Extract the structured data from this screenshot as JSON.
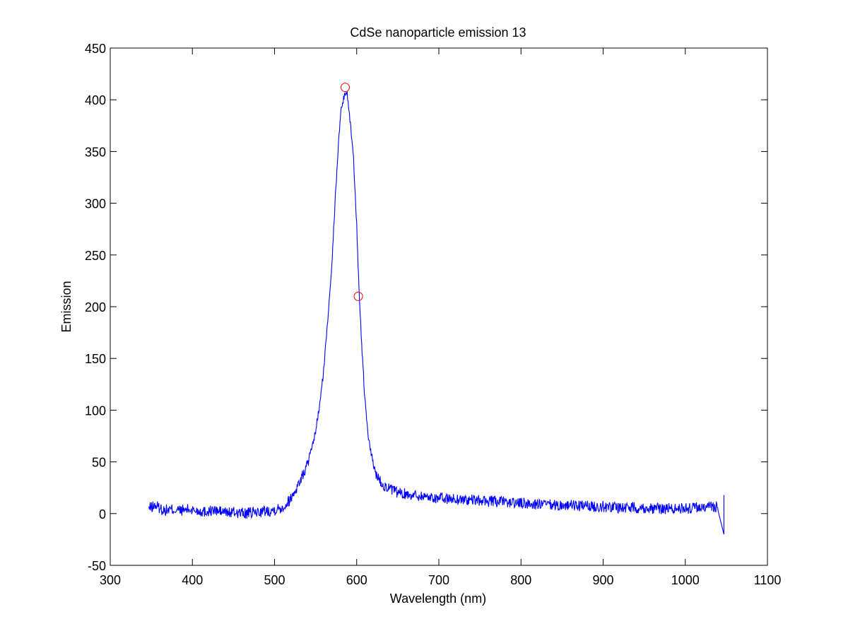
{
  "chart_data": {
    "type": "line",
    "title": "CdSe nanoparticle emission 13",
    "xlabel": "Wavelength (nm)",
    "ylabel": "Emission",
    "xlim": [
      300,
      1100
    ],
    "ylim": [
      -50,
      450
    ],
    "xticks": [
      "300",
      "400",
      "500",
      "600",
      "700",
      "800",
      "900",
      "1000",
      "1100"
    ],
    "yticks": [
      "-50",
      "0",
      "50",
      "100",
      "150",
      "200",
      "250",
      "300",
      "350",
      "400",
      "450"
    ],
    "grid": false,
    "legend": "none",
    "series": [
      {
        "color": "#0000ff",
        "x": [
          347,
          355,
          365,
          375,
          385,
          395,
          405,
          415,
          425,
          435,
          445,
          455,
          465,
          475,
          485,
          495,
          505,
          510,
          515,
          520,
          525,
          530,
          535,
          540,
          545,
          550,
          555,
          560,
          565,
          570,
          575,
          580,
          585,
          588,
          592,
          596,
          600,
          603,
          606,
          610,
          614,
          618,
          622,
          626,
          630,
          635,
          640,
          645,
          650,
          660,
          670,
          680,
          690,
          700,
          720,
          740,
          760,
          780,
          800,
          820,
          840,
          860,
          880,
          900,
          920,
          940,
          960,
          980,
          1000,
          1020,
          1040,
          1047
        ],
        "y": [
          5,
          8,
          3,
          4,
          3,
          4,
          3,
          2,
          3,
          2,
          1,
          1,
          0,
          1,
          2,
          3,
          5,
          6,
          10,
          15,
          22,
          30,
          38,
          48,
          60,
          80,
          105,
          140,
          190,
          245,
          320,
          385,
          405,
          408,
          380,
          345,
          280,
          210,
          165,
          110,
          75,
          55,
          42,
          35,
          30,
          26,
          24,
          22,
          20,
          19,
          18,
          17,
          16,
          15,
          14,
          13,
          12,
          11,
          10,
          9,
          8,
          8,
          7,
          7,
          6,
          6,
          5,
          5,
          5,
          6,
          7,
          -20
        ]
      }
    ],
    "markers": [
      {
        "x": 586,
        "y": 412,
        "color": "#ff0000"
      },
      {
        "x": 602,
        "y": 210,
        "color": "#ff0000"
      }
    ]
  }
}
